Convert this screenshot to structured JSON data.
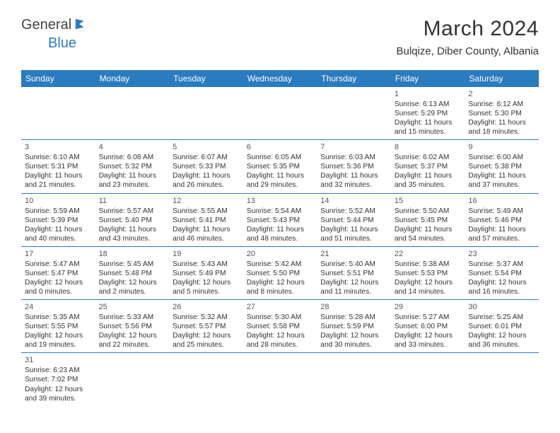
{
  "logo": {
    "part1": "General",
    "part2": "Blue"
  },
  "title": "March 2024",
  "location": "Bulqize, Diber County, Albania",
  "colors": {
    "header_bg": "#2a7bbf",
    "header_text": "#ffffff",
    "divider": "#2a7bbf",
    "body_text": "#333333",
    "logo_gray": "#444444",
    "logo_blue": "#2a7bbf",
    "background": "#ffffff"
  },
  "dow": [
    "Sunday",
    "Monday",
    "Tuesday",
    "Wednesday",
    "Thursday",
    "Friday",
    "Saturday"
  ],
  "weeks": [
    [
      null,
      null,
      null,
      null,
      null,
      {
        "n": 1,
        "sr": "6:13 AM",
        "ss": "5:29 PM",
        "dh": 11,
        "dm": 15
      },
      {
        "n": 2,
        "sr": "6:12 AM",
        "ss": "5:30 PM",
        "dh": 11,
        "dm": 18
      }
    ],
    [
      {
        "n": 3,
        "sr": "6:10 AM",
        "ss": "5:31 PM",
        "dh": 11,
        "dm": 21
      },
      {
        "n": 4,
        "sr": "6:08 AM",
        "ss": "5:32 PM",
        "dh": 11,
        "dm": 23
      },
      {
        "n": 5,
        "sr": "6:07 AM",
        "ss": "5:33 PM",
        "dh": 11,
        "dm": 26
      },
      {
        "n": 6,
        "sr": "6:05 AM",
        "ss": "5:35 PM",
        "dh": 11,
        "dm": 29
      },
      {
        "n": 7,
        "sr": "6:03 AM",
        "ss": "5:36 PM",
        "dh": 11,
        "dm": 32
      },
      {
        "n": 8,
        "sr": "6:02 AM",
        "ss": "5:37 PM",
        "dh": 11,
        "dm": 35
      },
      {
        "n": 9,
        "sr": "6:00 AM",
        "ss": "5:38 PM",
        "dh": 11,
        "dm": 37
      }
    ],
    [
      {
        "n": 10,
        "sr": "5:59 AM",
        "ss": "5:39 PM",
        "dh": 11,
        "dm": 40
      },
      {
        "n": 11,
        "sr": "5:57 AM",
        "ss": "5:40 PM",
        "dh": 11,
        "dm": 43
      },
      {
        "n": 12,
        "sr": "5:55 AM",
        "ss": "5:41 PM",
        "dh": 11,
        "dm": 46
      },
      {
        "n": 13,
        "sr": "5:54 AM",
        "ss": "5:43 PM",
        "dh": 11,
        "dm": 48
      },
      {
        "n": 14,
        "sr": "5:52 AM",
        "ss": "5:44 PM",
        "dh": 11,
        "dm": 51
      },
      {
        "n": 15,
        "sr": "5:50 AM",
        "ss": "5:45 PM",
        "dh": 11,
        "dm": 54
      },
      {
        "n": 16,
        "sr": "5:49 AM",
        "ss": "5:46 PM",
        "dh": 11,
        "dm": 57
      }
    ],
    [
      {
        "n": 17,
        "sr": "5:47 AM",
        "ss": "5:47 PM",
        "dh": 12,
        "dm": 0
      },
      {
        "n": 18,
        "sr": "5:45 AM",
        "ss": "5:48 PM",
        "dh": 12,
        "dm": 2
      },
      {
        "n": 19,
        "sr": "5:43 AM",
        "ss": "5:49 PM",
        "dh": 12,
        "dm": 5
      },
      {
        "n": 20,
        "sr": "5:42 AM",
        "ss": "5:50 PM",
        "dh": 12,
        "dm": 8
      },
      {
        "n": 21,
        "sr": "5:40 AM",
        "ss": "5:51 PM",
        "dh": 12,
        "dm": 11
      },
      {
        "n": 22,
        "sr": "5:38 AM",
        "ss": "5:53 PM",
        "dh": 12,
        "dm": 14
      },
      {
        "n": 23,
        "sr": "5:37 AM",
        "ss": "5:54 PM",
        "dh": 12,
        "dm": 16
      }
    ],
    [
      {
        "n": 24,
        "sr": "5:35 AM",
        "ss": "5:55 PM",
        "dh": 12,
        "dm": 19
      },
      {
        "n": 25,
        "sr": "5:33 AM",
        "ss": "5:56 PM",
        "dh": 12,
        "dm": 22
      },
      {
        "n": 26,
        "sr": "5:32 AM",
        "ss": "5:57 PM",
        "dh": 12,
        "dm": 25
      },
      {
        "n": 27,
        "sr": "5:30 AM",
        "ss": "5:58 PM",
        "dh": 12,
        "dm": 28
      },
      {
        "n": 28,
        "sr": "5:28 AM",
        "ss": "5:59 PM",
        "dh": 12,
        "dm": 30
      },
      {
        "n": 29,
        "sr": "5:27 AM",
        "ss": "6:00 PM",
        "dh": 12,
        "dm": 33
      },
      {
        "n": 30,
        "sr": "5:25 AM",
        "ss": "6:01 PM",
        "dh": 12,
        "dm": 36
      }
    ],
    [
      {
        "n": 31,
        "sr": "6:23 AM",
        "ss": "7:02 PM",
        "dh": 12,
        "dm": 39
      },
      null,
      null,
      null,
      null,
      null,
      null
    ]
  ],
  "labels": {
    "sunrise_prefix": "Sunrise: ",
    "sunset_prefix": "Sunset: ",
    "daylight_prefix": "Daylight: ",
    "hours_word": " hours",
    "and_word": "and ",
    "minutes_word": " minutes."
  }
}
